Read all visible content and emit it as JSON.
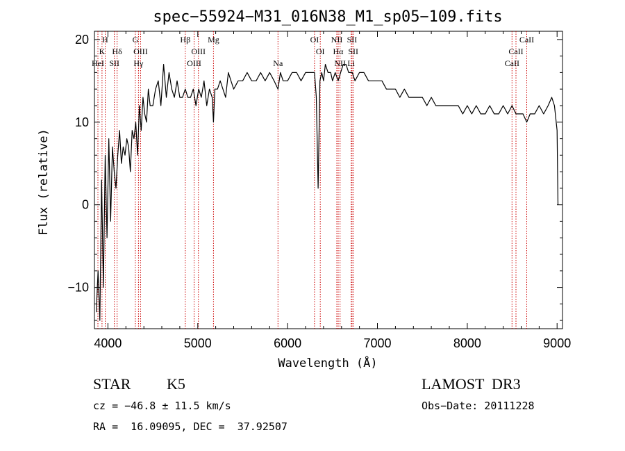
{
  "chart_data": {
    "type": "line",
    "title": "spec−55924−M31_016N38_M1_sp05−109.fits",
    "xlabel": "Wavelength (Å)",
    "ylabel": "Flux (relative)",
    "xlim": [
      3850,
      9060
    ],
    "ylim": [
      -15,
      21
    ],
    "xticks": [
      4000,
      5000,
      6000,
      7000,
      8000,
      9000
    ],
    "xtick_labels": [
      "4000",
      "5000",
      "6000",
      "7000",
      "8000",
      "9000"
    ],
    "yticks": [
      -10,
      0,
      10,
      20
    ],
    "ytick_labels": [
      "−10",
      "0",
      "10",
      "20"
    ],
    "grid": false,
    "legend": "none",
    "series": [
      {
        "name": "spectrum",
        "x": [
          3870,
          3890,
          3910,
          3930,
          3950,
          3970,
          3990,
          4010,
          4030,
          4050,
          4070,
          4090,
          4110,
          4130,
          4150,
          4170,
          4190,
          4210,
          4230,
          4250,
          4270,
          4290,
          4310,
          4330,
          4350,
          4370,
          4390,
          4410,
          4430,
          4450,
          4470,
          4500,
          4530,
          4560,
          4590,
          4620,
          4650,
          4680,
          4710,
          4740,
          4770,
          4800,
          4830,
          4861,
          4890,
          4920,
          4950,
          4980,
          5010,
          5040,
          5070,
          5100,
          5130,
          5160,
          5175,
          5190,
          5220,
          5250,
          5280,
          5310,
          5340,
          5370,
          5400,
          5450,
          5500,
          5550,
          5600,
          5650,
          5700,
          5750,
          5800,
          5850,
          5893,
          5920,
          5950,
          6000,
          6050,
          6100,
          6150,
          6200,
          6250,
          6300,
          6320,
          6340,
          6360,
          6380,
          6400,
          6420,
          6450,
          6480,
          6500,
          6530,
          6563,
          6590,
          6620,
          6650,
          6680,
          6700,
          6720,
          6750,
          6800,
          6850,
          6900,
          6950,
          7000,
          7050,
          7100,
          7150,
          7200,
          7250,
          7300,
          7350,
          7400,
          7450,
          7500,
          7550,
          7600,
          7650,
          7700,
          7750,
          7800,
          7850,
          7900,
          7950,
          8000,
          8050,
          8100,
          8150,
          8200,
          8250,
          8300,
          8350,
          8400,
          8450,
          8498,
          8542,
          8580,
          8620,
          8662,
          8700,
          8750,
          8800,
          8850,
          8900,
          8940,
          8970,
          9000,
          9010
        ],
        "y": [
          -13,
          -8,
          -14,
          3,
          -10,
          6,
          -4,
          8,
          -2,
          7,
          4,
          2,
          6,
          9,
          5,
          7,
          6,
          8,
          7,
          4,
          9,
          8,
          10,
          6,
          12,
          9,
          13,
          11,
          10,
          14,
          12,
          12,
          14,
          15,
          12,
          17,
          13,
          16,
          14,
          13,
          15,
          13,
          13,
          14,
          13,
          13,
          14,
          12,
          14,
          13,
          15,
          12,
          14,
          13,
          10,
          14,
          14,
          15,
          14,
          13,
          16,
          15,
          14,
          15,
          15,
          16,
          15,
          15,
          16,
          15,
          16,
          15,
          14,
          16,
          15,
          15,
          16,
          16,
          15,
          16,
          16,
          16,
          13,
          2,
          15,
          16,
          15,
          17,
          16,
          16,
          15,
          16,
          15,
          16,
          17,
          17,
          16,
          16,
          16,
          15,
          16,
          16,
          15,
          15,
          15,
          15,
          14,
          14,
          14,
          13,
          14,
          13,
          13,
          13,
          13,
          12,
          13,
          12,
          12,
          12,
          12,
          12,
          12,
          11,
          12,
          11,
          12,
          11,
          11,
          12,
          11,
          11,
          12,
          11,
          12,
          11,
          11,
          11,
          10,
          11,
          11,
          12,
          11,
          12,
          13,
          12,
          9,
          0
        ]
      }
    ],
    "lines": [
      {
        "name": "H",
        "wl": 3970,
        "row": 0
      },
      {
        "name": "K",
        "wl": 3934,
        "row": 1
      },
      {
        "name": "HeI",
        "wl": 3889,
        "row": 2
      },
      {
        "name": "SII",
        "wl": 4072,
        "row": 2
      },
      {
        "name": "Hδ",
        "wl": 4102,
        "row": 1
      },
      {
        "name": "G",
        "wl": 4305,
        "row": 0
      },
      {
        "name": "OIII",
        "wl": 4363,
        "row": 1
      },
      {
        "name": "Hγ",
        "wl": 4340,
        "row": 2
      },
      {
        "name": "Hβ",
        "wl": 4861,
        "row": 0
      },
      {
        "name": "OIII",
        "wl": 5007,
        "row": 1
      },
      {
        "name": "OIII",
        "wl": 4959,
        "row": 2
      },
      {
        "name": "Mg",
        "wl": 5175,
        "row": 0
      },
      {
        "name": "Na",
        "wl": 5893,
        "row": 2
      },
      {
        "name": "OI",
        "wl": 6300,
        "row": 0
      },
      {
        "name": "OI",
        "wl": 6364,
        "row": 1
      },
      {
        "name": "NII",
        "wl": 6548,
        "row": 0
      },
      {
        "name": "SII",
        "wl": 6717,
        "row": 0
      },
      {
        "name": "Hα",
        "wl": 6563,
        "row": 1
      },
      {
        "name": "SII",
        "wl": 6731,
        "row": 1
      },
      {
        "name": "NII",
        "wl": 6584,
        "row": 2
      },
      {
        "name": "Li",
        "wl": 6708,
        "row": 2
      },
      {
        "name": "CaII",
        "wl": 8662,
        "row": 0
      },
      {
        "name": "CaII",
        "wl": 8542,
        "row": 1
      },
      {
        "name": "CaII",
        "wl": 8498,
        "row": 2
      }
    ],
    "line_color": "#cc0000"
  },
  "info": {
    "class": "STAR",
    "subclass": "K5",
    "survey": "LAMOST  DR3",
    "cz": "cz = −46.8 ± 11.5 km/s",
    "obs_date": "Obs−Date: 20111228",
    "coords": "RA =  16.09095, DEC =  37.92507"
  }
}
